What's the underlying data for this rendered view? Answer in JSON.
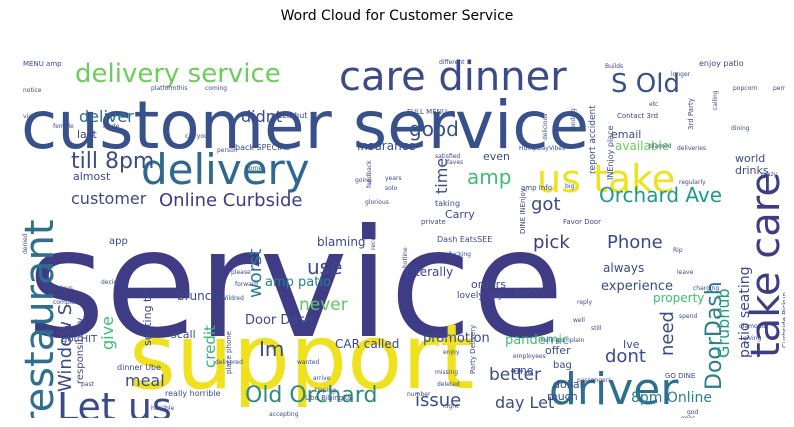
{
  "chart_data": {
    "type": "wordcloud",
    "title": "Word Cloud for Customer Service",
    "words": [
      {
        "text": "service",
        "weight": 100,
        "color": "#3f3c85"
      },
      {
        "text": "customer service",
        "weight": 66,
        "color": "#38518a"
      },
      {
        "text": "support",
        "weight": 60,
        "color": "#f0e11e"
      },
      {
        "text": "care dinner",
        "weight": 32,
        "color": "#3b4b8a"
      },
      {
        "text": "delivery",
        "weight": 34,
        "color": "#2f6a8e"
      },
      {
        "text": "take care",
        "weight": 34,
        "color": "#3f3c85"
      },
      {
        "text": "restaurant",
        "weight": 32,
        "color": "#2e6f8e"
      },
      {
        "text": "driver",
        "weight": 30,
        "color": "#2e6f8e"
      },
      {
        "text": "Let us",
        "weight": 28,
        "color": "#3b4b8a"
      },
      {
        "text": "us take",
        "weight": 28,
        "color": "#f0e11e"
      },
      {
        "text": "delivery service",
        "weight": 20,
        "color": "#6ccd5a"
      },
      {
        "text": "S Old",
        "weight": 20,
        "color": "#38518a"
      },
      {
        "text": "till 8pm",
        "weight": 18,
        "color": "#3b4b8a"
      },
      {
        "text": "Old Orchard",
        "weight": 17,
        "color": "#2e8b7c"
      },
      {
        "text": "DoorDash",
        "weight": 17,
        "color": "#2a7f8e"
      },
      {
        "text": "Orchard Ave",
        "weight": 15,
        "color": "#1f9a8a"
      },
      {
        "text": "Online Curbside",
        "weight": 14,
        "color": "#3f3c85"
      },
      {
        "text": "Window S",
        "weight": 14,
        "color": "#3b4b8a"
      },
      {
        "text": "amp",
        "weight": 14,
        "color": "#3fbc73"
      },
      {
        "text": "good",
        "weight": 14,
        "color": "#38518a"
      },
      {
        "text": "got",
        "weight": 13,
        "color": "#3b4b8a"
      },
      {
        "text": "Phone",
        "weight": 12,
        "color": "#3b4b8a"
      },
      {
        "text": "pick",
        "weight": 13,
        "color": "#3f3c85"
      },
      {
        "text": "use",
        "weight": 13,
        "color": "#3b4b8a"
      },
      {
        "text": "worst",
        "weight": 13,
        "color": "#2a7f8e"
      },
      {
        "text": "never",
        "weight": 12,
        "color": "#5ec962"
      },
      {
        "text": "Im",
        "weight": 13,
        "color": "#3b4b8a"
      },
      {
        "text": "issue",
        "weight": 12,
        "color": "#3b4b8a"
      },
      {
        "text": "dont",
        "weight": 12,
        "color": "#3b4b8a"
      },
      {
        "text": "need",
        "weight": 12,
        "color": "#3b4b8a"
      },
      {
        "text": "give",
        "weight": 12,
        "color": "#3fbc73"
      },
      {
        "text": "meal",
        "weight": 11,
        "color": "#3b4b8a"
      },
      {
        "text": "credit",
        "weight": 11,
        "color": "#35b779"
      },
      {
        "text": "better",
        "weight": 11,
        "color": "#3b4b8a"
      },
      {
        "text": "customer",
        "weight": 11,
        "color": "#3b4b8a"
      },
      {
        "text": "deliver",
        "weight": 11,
        "color": "#2e6f8e"
      },
      {
        "text": "didnt",
        "weight": 11,
        "color": "#3b4b8a"
      },
      {
        "text": "Grubhub",
        "weight": 11,
        "color": "#1f9a8a"
      },
      {
        "text": "time",
        "weight": 11,
        "color": "#3b4b8a"
      },
      {
        "text": "day Let",
        "weight": 11,
        "color": "#3b4b8a"
      },
      {
        "text": "8pm Online",
        "weight": 10,
        "color": "#2a7f8e"
      },
      {
        "text": "patio seating",
        "weight": 10,
        "color": "#3b4b8a"
      },
      {
        "text": "amp patio",
        "weight": 9,
        "color": "#2a7f8e"
      },
      {
        "text": "Door Dash",
        "weight": 9,
        "color": "#3b4b8a"
      },
      {
        "text": "CAR called",
        "weight": 9,
        "color": "#3b4b8a"
      },
      {
        "text": "promotion",
        "weight": 9,
        "color": "#3b4b8a"
      },
      {
        "text": "pandemic",
        "weight": 9,
        "color": "#3fbc73"
      },
      {
        "text": "SPECIAL Carry",
        "weight": 9,
        "color": "#6ccd5a"
      },
      {
        "text": "experience",
        "weight": 9,
        "color": "#3b4b8a"
      },
      {
        "text": "always",
        "weight": 9,
        "color": "#3b4b8a"
      },
      {
        "text": "property",
        "weight": 9,
        "color": "#3fbc73"
      },
      {
        "text": "available",
        "weight": 9,
        "color": "#6ccd5a"
      },
      {
        "text": "insurance",
        "weight": 9,
        "color": "#3b4b8a"
      },
      {
        "text": "blaming",
        "weight": 9,
        "color": "#3b4b8a"
      },
      {
        "text": "seating till",
        "weight": 9,
        "color": "#3b4b8a"
      },
      {
        "text": "brunch",
        "weight": 9,
        "color": "#3b4b8a"
      },
      {
        "text": "amount",
        "weight": 9,
        "color": "#3b4b8a"
      },
      {
        "text": "Literally",
        "weight": 9,
        "color": "#3b4b8a"
      },
      {
        "text": "orders",
        "weight": 8,
        "color": "#3b4b8a"
      },
      {
        "text": "almost",
        "weight": 8,
        "color": "#3b4b8a"
      },
      {
        "text": "email",
        "weight": 8,
        "color": "#3b4b8a"
      },
      {
        "text": "last",
        "weight": 8,
        "color": "#3b4b8a"
      },
      {
        "text": "even",
        "weight": 8,
        "color": "#3b4b8a"
      },
      {
        "text": "Carry",
        "weight": 8,
        "color": "#3b4b8a"
      },
      {
        "text": "world",
        "weight": 8,
        "color": "#3b4b8a"
      },
      {
        "text": "drinks",
        "weight": 8,
        "color": "#3b4b8a"
      },
      {
        "text": "got HIT",
        "weight": 8,
        "color": "#3b4b8a"
      },
      {
        "text": "app",
        "weight": 8,
        "color": "#3b4b8a"
      },
      {
        "text": "scall",
        "weight": 8,
        "color": "#3b4b8a"
      },
      {
        "text": "offer",
        "weight": 8,
        "color": "#3b4b8a"
      },
      {
        "text": "bag",
        "weight": 8,
        "color": "#3b4b8a"
      },
      {
        "text": "Ive",
        "weight": 8,
        "color": "#3b4b8a"
      },
      {
        "text": "one",
        "weight": 8,
        "color": "#3b4b8a"
      },
      {
        "text": "dollar",
        "weight": 8,
        "color": "#3b4b8a"
      },
      {
        "text": "much",
        "weight": 8,
        "color": "#3b4b8a"
      },
      {
        "text": "chips",
        "weight": 8,
        "color": "#3b4b8a"
      },
      {
        "text": "body",
        "weight": 7,
        "color": "#3b4b8a"
      },
      {
        "text": "called ambulance",
        "weight": 7,
        "color": "#3b4b8a"
      },
      {
        "text": "phone pickup28",
        "weight": 6,
        "color": "#3b4b8a"
      },
      {
        "text": "pizza hut",
        "weight": 5,
        "color": "#3b4b8a"
      },
      {
        "text": "MENU amp",
        "weight": 5,
        "color": "#3b4b8a"
      },
      {
        "text": "enjoy patio",
        "weight": 6,
        "color": "#3b4b8a"
      },
      {
        "text": "back SPECIAL",
        "weight": 5,
        "color": "#3b4b8a"
      },
      {
        "text": "FULL MENU",
        "weight": 5,
        "color": "#3b4b8a"
      },
      {
        "text": "lovely day",
        "weight": 6,
        "color": "#3b4b8a"
      },
      {
        "text": "dinner Ube",
        "weight": 6,
        "color": "#3b4b8a"
      },
      {
        "text": "really horrible",
        "weight": 6,
        "color": "#3b4b8a"
      },
      {
        "text": "Dash EatsSEE",
        "weight": 5,
        "color": "#3b4b8a"
      },
      {
        "text": "Ube Bibingka",
        "weight": 5,
        "color": "#3b4b8a"
      },
      {
        "text": "Party Delivery",
        "weight": 5,
        "color": "#3b4b8a"
      },
      {
        "text": "3rd Party",
        "weight": 5,
        "color": "#3b4b8a"
      },
      {
        "text": "report accident",
        "weight": 6,
        "color": "#3b4b8a"
      },
      {
        "text": "INEnjoy place",
        "weight": 6,
        "color": "#3b4b8a"
      },
      {
        "text": "Contact 3rd",
        "weight": 5,
        "color": "#3b4b8a"
      },
      {
        "text": "responsibility",
        "weight": 7,
        "color": "#3b4b8a"
      },
      {
        "text": "Curbside Pickup",
        "weight": 5,
        "color": "#3b4b8a"
      },
      {
        "text": "GO DINE",
        "weight": 5,
        "color": "#3b4b8a"
      },
      {
        "text": "place phone",
        "weight": 5,
        "color": "#3b4b8a"
      },
      {
        "text": "taking",
        "weight": 5,
        "color": "#3b4b8a"
      },
      {
        "text": "private",
        "weight": 5,
        "color": "#3b4b8a"
      },
      {
        "text": "Favor Door",
        "weight": 5,
        "color": "#3b4b8a"
      },
      {
        "text": "DINE INEnjoy",
        "weight": 5,
        "color": "#3b4b8a"
      },
      {
        "text": "amp Info",
        "weight": 5,
        "color": "#3b4b8a"
      },
      {
        "text": "coming",
        "weight": 5,
        "color": "#3b4b8a"
      },
      {
        "text": "different",
        "weight": 5,
        "color": "#3b4b8a"
      },
      {
        "text": "sending",
        "weight": 5,
        "color": "#3b4b8a"
      },
      {
        "text": "Builds",
        "weight": 5,
        "color": "#3b4b8a"
      },
      {
        "text": "delivered",
        "weight": 5,
        "color": "#3b4b8a"
      },
      {
        "text": "Wildred",
        "weight": 5,
        "color": "#3b4b8a"
      },
      {
        "text": "weekdays",
        "weight": 5,
        "color": "#3b4b8a"
      },
      {
        "text": "complaint",
        "weight": 5,
        "color": "#3b4b8a"
      },
      {
        "text": "decide",
        "weight": 5,
        "color": "#3b4b8a"
      },
      {
        "text": "forward",
        "weight": 5,
        "color": "#3b4b8a"
      },
      {
        "text": "please",
        "weight": 5,
        "color": "#3b4b8a"
      },
      {
        "text": "wanted",
        "weight": 5,
        "color": "#3b4b8a"
      },
      {
        "text": "arrive",
        "weight": 5,
        "color": "#3b4b8a"
      },
      {
        "text": "tipping",
        "weight": 5,
        "color": "#3b4b8a"
      },
      {
        "text": "missing",
        "weight": 5,
        "color": "#3b4b8a"
      },
      {
        "text": "night",
        "weight": 5,
        "color": "#3b4b8a"
      },
      {
        "text": "number",
        "weight": 5,
        "color": "#3b4b8a"
      },
      {
        "text": "deleted",
        "weight": 5,
        "color": "#3b4b8a"
      },
      {
        "text": "reply",
        "weight": 5,
        "color": "#3b4b8a"
      },
      {
        "text": "well",
        "weight": 5,
        "color": "#3b4b8a"
      },
      {
        "text": "still",
        "weight": 5,
        "color": "#3b4b8a"
      },
      {
        "text": "spend",
        "weight": 5,
        "color": "#3b4b8a"
      },
      {
        "text": "diamond",
        "weight": 5,
        "color": "#3b4b8a"
      },
      {
        "text": "giving",
        "weight": 5,
        "color": "#3b4b8a"
      },
      {
        "text": "card",
        "weight": 5,
        "color": "#3b4b8a"
      },
      {
        "text": "super",
        "weight": 5,
        "color": "#3b4b8a"
      },
      {
        "text": "Disgusting",
        "weight": 5,
        "color": "#3b4b8a"
      },
      {
        "text": "totally",
        "weight": 5,
        "color": "#3b4b8a"
      },
      {
        "text": "lovely",
        "weight": 5,
        "color": "#3b4b8a"
      },
      {
        "text": "making",
        "weight": 5,
        "color": "#3b4b8a"
      },
      {
        "text": "tip",
        "weight": 5,
        "color": "#3b4b8a"
      },
      {
        "text": "past",
        "weight": 5,
        "color": "#3b4b8a"
      },
      {
        "text": "enjoy",
        "weight": 5,
        "color": "#3b4b8a"
      },
      {
        "text": "employees",
        "weight": 5,
        "color": "#3b4b8a"
      },
      {
        "text": "god",
        "weight": 5,
        "color": "#3b4b8a"
      },
      {
        "text": "goes",
        "weight": 5,
        "color": "#3b4b8a"
      },
      {
        "text": "leave",
        "weight": 5,
        "color": "#3b4b8a"
      },
      {
        "text": "charging",
        "weight": 5,
        "color": "#3b4b8a"
      },
      {
        "text": "Rip",
        "weight": 5,
        "color": "#3b4b8a"
      },
      {
        "text": "regularly",
        "weight": 5,
        "color": "#3b4b8a"
      },
      {
        "text": "dining",
        "weight": 5,
        "color": "#3b4b8a"
      },
      {
        "text": "blamed",
        "weight": 5,
        "color": "#3b4b8a"
      },
      {
        "text": "deliveries",
        "weight": 5,
        "color": "#3b4b8a"
      },
      {
        "text": "crazy",
        "weight": 5,
        "color": "#3b4b8a"
      },
      {
        "text": "satisfied",
        "weight": 5,
        "color": "#3b4b8a"
      },
      {
        "text": "HumpDayVibes",
        "weight": 5,
        "color": "#3b4b8a"
      },
      {
        "text": "faves",
        "weight": 5,
        "color": "#3b4b8a"
      },
      {
        "text": "years",
        "weight": 5,
        "color": "#3b4b8a"
      },
      {
        "text": "solo",
        "weight": 5,
        "color": "#3b4b8a"
      },
      {
        "text": "glorious",
        "weight": 5,
        "color": "#3b4b8a"
      },
      {
        "text": "going",
        "weight": 5,
        "color": "#3b4b8a"
      },
      {
        "text": "hotline",
        "weight": 5,
        "color": "#3b4b8a"
      },
      {
        "text": "receive",
        "weight": 5,
        "color": "#3b4b8a"
      },
      {
        "text": "feedback",
        "weight": 5,
        "color": "#3b4b8a"
      },
      {
        "text": "person",
        "weight": 5,
        "color": "#3b4b8a"
      },
      {
        "text": "notice",
        "weight": 5,
        "color": "#3b4b8a"
      },
      {
        "text": "via",
        "weight": 5,
        "color": "#3b4b8a"
      },
      {
        "text": "female",
        "weight": 5,
        "color": "#3b4b8a"
      },
      {
        "text": "Made",
        "weight": 5,
        "color": "#3b4b8a"
      },
      {
        "text": "platformthis",
        "weight": 5,
        "color": "#3b4b8a"
      },
      {
        "text": "carryout",
        "weight": 5,
        "color": "#3b4b8a"
      },
      {
        "text": "permit",
        "weight": 5,
        "color": "#3b4b8a"
      },
      {
        "text": "popcorn",
        "weight": 5,
        "color": "#3b4b8a"
      },
      {
        "text": "longer",
        "weight": 5,
        "color": "#3b4b8a"
      },
      {
        "text": "etc",
        "weight": 5,
        "color": "#3b4b8a"
      },
      {
        "text": "calling",
        "weight": 5,
        "color": "#3b4b8a"
      },
      {
        "text": "delicious",
        "weight": 5,
        "color": "#3b4b8a"
      },
      {
        "text": "tailing",
        "weight": 5,
        "color": "#3b4b8a"
      },
      {
        "text": "complain",
        "weight": 5,
        "color": "#3b4b8a"
      },
      {
        "text": "passengers",
        "weight": 5,
        "color": "#3b4b8a"
      },
      {
        "text": "accepting",
        "weight": 5,
        "color": "#3b4b8a"
      },
      {
        "text": "horrible",
        "weight": 5,
        "color": "#3b4b8a"
      },
      {
        "text": "denied",
        "weight": 5,
        "color": "#3b4b8a"
      },
      {
        "text": "home",
        "weight": 5,
        "color": "#3b4b8a"
      },
      {
        "text": "big",
        "weight": 5,
        "color": "#3b4b8a"
      },
      {
        "text": "fucking",
        "weight": 5,
        "color": "#3b4b8a"
      }
    ]
  }
}
